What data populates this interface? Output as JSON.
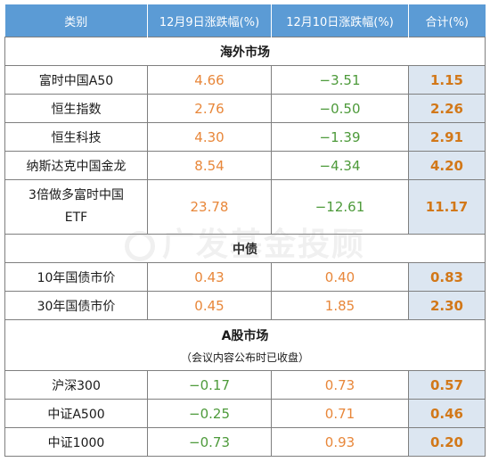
{
  "header": {
    "col1": "类别",
    "col2": "12月9日涨跌幅(%)",
    "col3": "12月10日涨跌幅(%)",
    "col4": "合计(%)"
  },
  "sections": {
    "overseas": {
      "title": "海外市场",
      "rows": [
        {
          "name": "富时中国A50",
          "d9": "4.66",
          "d10": "−3.51",
          "total": "1.15"
        },
        {
          "name": "恒生指数",
          "d9": "2.76",
          "d10": "−0.50",
          "total": "2.26"
        },
        {
          "name": "恒生科技",
          "d9": "4.30",
          "d10": "−1.39",
          "total": "2.91"
        },
        {
          "name": "纳斯达克中国金龙",
          "d9": "8.54",
          "d10": "−4.34",
          "total": "4.20"
        },
        {
          "name_line1": "3倍做多富时中国",
          "name_line2": "ETF",
          "d9": "23.78",
          "d10": "−12.61",
          "total": "11.17"
        }
      ]
    },
    "bonds": {
      "title": "中债",
      "rows": [
        {
          "name": "10年国债市价",
          "d9": "0.43",
          "d10": "0.40",
          "total": "0.83"
        },
        {
          "name": "30年国债市价",
          "d9": "0.45",
          "d10": "1.85",
          "total": "2.30"
        }
      ]
    },
    "ashare": {
      "title": "A股市场",
      "note": "（会议内容公布时已收盘）",
      "rows": [
        {
          "name": "沪深300",
          "d9": "−0.17",
          "d10": "0.73",
          "total": "0.57"
        },
        {
          "name": "中证A500",
          "d9": "−0.25",
          "d10": "0.71",
          "total": "0.46"
        },
        {
          "name": "中证1000",
          "d9": "−0.73",
          "d10": "0.93",
          "total": "0.20"
        }
      ]
    }
  },
  "watermark": "广发基金投顾",
  "colors": {
    "header_bg": "#5b9bd5",
    "positive": "#e8873a",
    "negative": "#4d9a3a",
    "total_bg": "#dce6f1",
    "total_text": "#d27819"
  }
}
